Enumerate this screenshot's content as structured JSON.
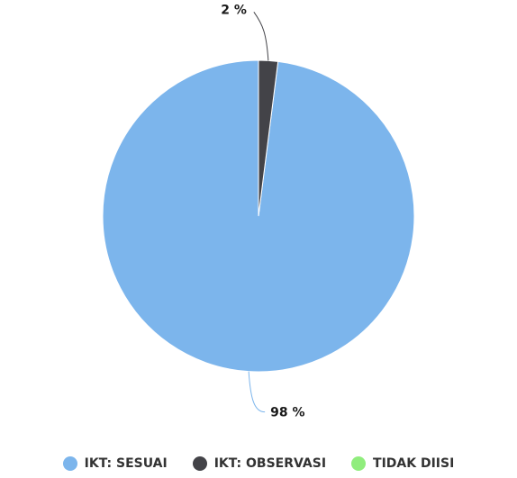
{
  "chart_data": {
    "type": "pie",
    "series": [
      {
        "name": "IKT: SESUAI",
        "value": 98,
        "label": "98 %",
        "color": "#7cb5ec"
      },
      {
        "name": "IKT: OBSERVASI",
        "value": 2,
        "label": "2 %",
        "color": "#434348"
      },
      {
        "name": "TIDAK DIISI",
        "value": 0,
        "label": "",
        "color": "#90ed7d"
      }
    ],
    "legend_placement": "bottom",
    "start_angle": 0,
    "direction": "counter-clockwise"
  }
}
